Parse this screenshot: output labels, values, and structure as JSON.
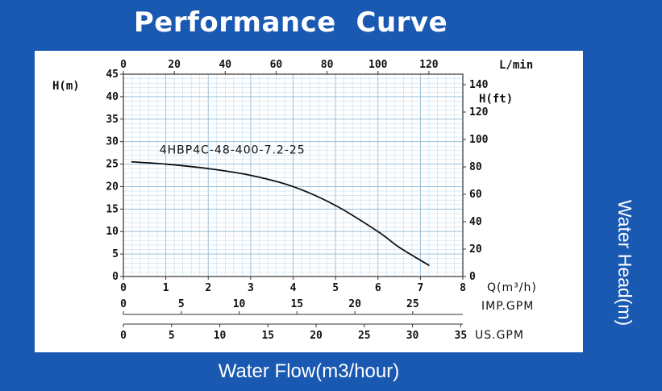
{
  "header": {
    "title": "Performance  Curve"
  },
  "footer": {
    "xlabel": "Water Flow(m3/hour)",
    "side_label": "Water Head(m)"
  },
  "chart_data": {
    "type": "line",
    "title": "Performance  Curve",
    "xlabel": "Q(m³/h)",
    "ylabel": "H(m)",
    "y2label": "H(ft)",
    "top_axis_label": "L/min",
    "imp_gpm_label": "IMP.GPM",
    "us_gpm_label": "US.GPM",
    "xlim": [
      0,
      8
    ],
    "ylim": [
      0,
      45
    ],
    "grid": true,
    "x_ticks": [
      "0",
      "1",
      "2",
      "3",
      "4",
      "5",
      "6",
      "7",
      "8"
    ],
    "y_ticks": [
      "0",
      "5",
      "10",
      "15",
      "20",
      "25",
      "30",
      "35",
      "40",
      "45"
    ],
    "top_ticks": [
      {
        "value": 0,
        "label": "0"
      },
      {
        "value": 20,
        "label": "20"
      },
      {
        "value": 40,
        "label": "40"
      },
      {
        "value": 60,
        "label": "60"
      },
      {
        "value": 80,
        "label": "80"
      },
      {
        "value": 100,
        "label": "100"
      },
      {
        "value": 120,
        "label": "120"
      }
    ],
    "ft_ticks": [
      {
        "value": 0,
        "label": "0"
      },
      {
        "value": 20,
        "label": "20"
      },
      {
        "value": 40,
        "label": "40"
      },
      {
        "value": 60,
        "label": "60"
      },
      {
        "value": 80,
        "label": "80"
      },
      {
        "value": 100,
        "label": "100"
      },
      {
        "value": 120,
        "label": "120"
      },
      {
        "value": 140,
        "label": "140"
      }
    ],
    "imp_ticks": [
      {
        "value": 0,
        "label": "0"
      },
      {
        "value": 5,
        "label": "5"
      },
      {
        "value": 10,
        "label": "10"
      },
      {
        "value": 15,
        "label": "15"
      },
      {
        "value": 20,
        "label": "20"
      },
      {
        "value": 25,
        "label": "25"
      }
    ],
    "us_ticks": [
      {
        "value": 0,
        "label": "0"
      },
      {
        "value": 5,
        "label": "5"
      },
      {
        "value": 10,
        "label": "10"
      },
      {
        "value": 15,
        "label": "15"
      },
      {
        "value": 20,
        "label": "20"
      },
      {
        "value": 25,
        "label": "25"
      },
      {
        "value": 30,
        "label": "30"
      },
      {
        "value": 35,
        "label": "35"
      }
    ],
    "series": [
      {
        "name": "4HBP4C-48-400-7.2-25",
        "x": [
          0.2,
          1,
          2,
          3,
          4,
          5,
          6,
          6.5,
          7.2
        ],
        "y": [
          25.5,
          25,
          24,
          22.5,
          20,
          15.8,
          10,
          6.5,
          2.5
        ]
      }
    ]
  }
}
